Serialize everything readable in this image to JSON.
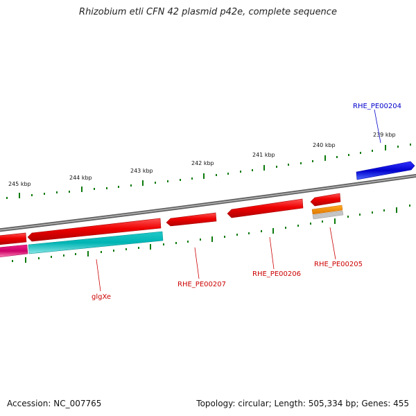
{
  "title": "Rhizobium etli CFN 42 plasmid p42e, complete sequence",
  "accession_label": "Accession: NC_007765",
  "summary_label": "Topology: circular; Length: 505,334 bp; Genes: 455",
  "colors": {
    "backbone": "#808080",
    "tick": "#006400",
    "gene_red": "#ee0000",
    "gene_blue": "#0000cc",
    "gene_cyan": "#00bbbb",
    "gene_magenta": "#dd0077",
    "gene_orange": "#ee8800",
    "gene_gray": "#c0c0c0",
    "label_red": "#cc0000",
    "label_blue": "#0000cc"
  },
  "ruler": {
    "outer_labels": [
      "245 kbp",
      "244 kbp",
      "243 kbp",
      "242 kbp",
      "241 kbp",
      "240 kbp",
      "239 kbp"
    ]
  },
  "genes": [
    {
      "label": "RHE_PE00204",
      "color": "blue"
    },
    {
      "label": "RHE_PE00205",
      "color": "red"
    },
    {
      "label": "RHE_PE00206",
      "color": "red"
    },
    {
      "label": "RHE_PE00207",
      "color": "red"
    },
    {
      "label": "glgXe",
      "color": "red"
    }
  ]
}
